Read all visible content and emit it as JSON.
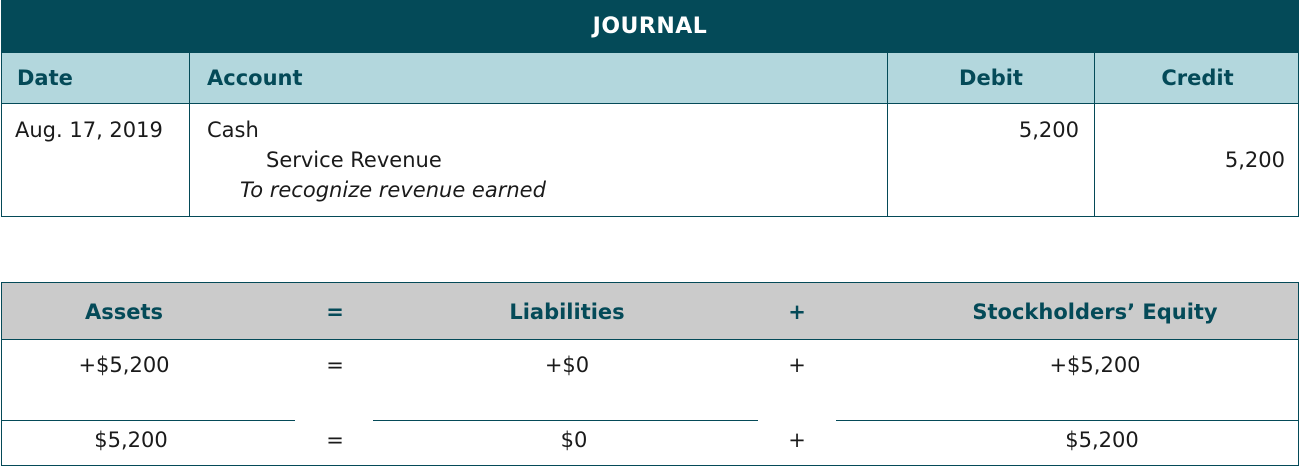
{
  "journal": {
    "title": "JOURNAL",
    "headers": {
      "date": "Date",
      "account": "Account",
      "debit": "Debit",
      "credit": "Credit"
    },
    "entry": {
      "date": "Aug. 17, 2019",
      "debit_account": "Cash",
      "credit_account": "Service Revenue",
      "memo": "To recognize revenue earned",
      "debit_amount": "5,200",
      "credit_amount": "5,200"
    }
  },
  "equation": {
    "headers": {
      "assets": "Assets",
      "eq": "=",
      "liabilities": "Liabilities",
      "plus": "+",
      "equity": "Stockholders’ Equity"
    },
    "change_row": {
      "assets": "+$5,200",
      "eq": "=",
      "liabilities": "+$0",
      "plus": "+",
      "equity": "+$5,200"
    },
    "total_row": {
      "assets": "$5,200",
      "eq": "=",
      "liabilities": "$0",
      "plus": "+",
      "equity": "$5,200"
    }
  }
}
